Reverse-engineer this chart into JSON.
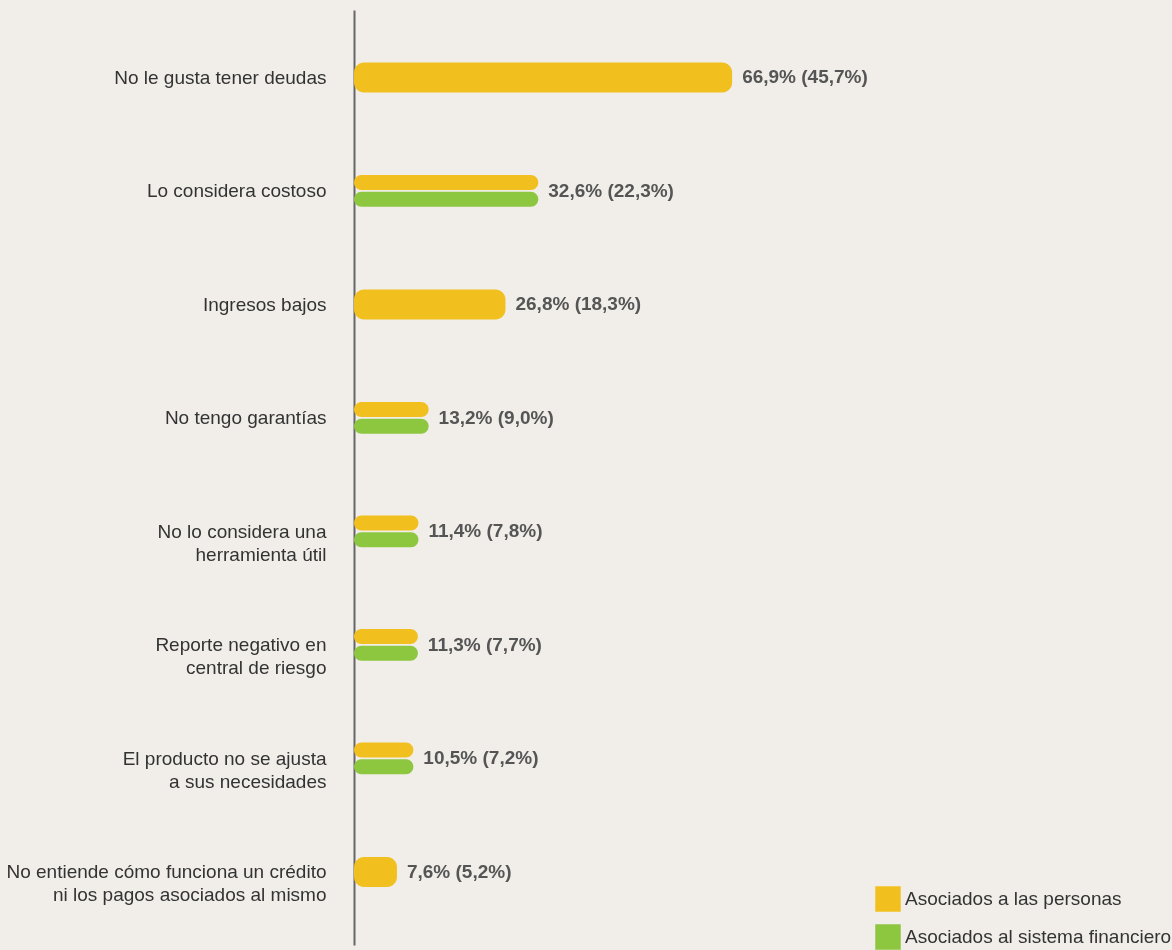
{
  "chart_data": {
    "type": "bar",
    "orientation": "horizontal",
    "legend": "bottom right",
    "categories": [
      "No le gusta tener deudas",
      "Lo considera costoso",
      "Ingresos bajos",
      "No tengo garantías",
      "No lo considera una\nherramienta útil",
      "Reporte negativo en\ncentral de riesgo",
      "El producto no se ajusta\na sus necesidades",
      "No entiende cómo funciona un crédito\nni los pagos asociados al mismo"
    ],
    "series": [
      {
        "name": "Asociados a las personas",
        "color": "#f2c01e",
        "values": [
          66.9,
          32.6,
          26.8,
          13.2,
          11.4,
          11.3,
          10.5,
          7.6
        ],
        "value_labels": [
          "66,9% (45,7%)",
          "32,6% (22,3%)",
          "26,8% (18,3%)",
          "13,2% (9,0%)",
          "11,4% (7,8%)",
          "11,3% (7,7%)",
          "10,5% (7,2%)",
          "7,6% (5,2%)"
        ]
      },
      {
        "name": "Asociados al sistema financiero",
        "color": "#8dc63f",
        "values": [
          null,
          32.6,
          null,
          13.2,
          11.4,
          11.3,
          10.5,
          null
        ]
      }
    ]
  }
}
